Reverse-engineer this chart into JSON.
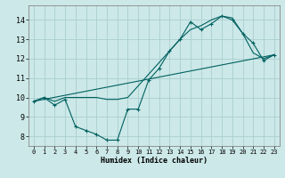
{
  "xlabel": "Humidex (Indice chaleur)",
  "background_color": "#cce8e8",
  "line_color": "#006060",
  "grid_color": "#aacece",
  "xlim": [
    -0.5,
    23.5
  ],
  "ylim": [
    7.5,
    14.75
  ],
  "xticks": [
    0,
    1,
    2,
    3,
    4,
    5,
    6,
    7,
    8,
    9,
    10,
    11,
    12,
    13,
    14,
    15,
    16,
    17,
    18,
    19,
    20,
    21,
    22,
    23
  ],
  "yticks": [
    8,
    9,
    10,
    11,
    12,
    13,
    14
  ],
  "line1_x": [
    0,
    1,
    2,
    3,
    4,
    5,
    6,
    7,
    8,
    9,
    10,
    11,
    12,
    13,
    14,
    15,
    16,
    17,
    18,
    19,
    20,
    21,
    22,
    23
  ],
  "line1_y": [
    9.8,
    10.0,
    9.6,
    9.9,
    8.5,
    8.3,
    8.1,
    7.8,
    7.8,
    9.4,
    9.4,
    10.9,
    11.5,
    12.4,
    13.0,
    13.9,
    13.5,
    13.8,
    14.2,
    14.0,
    13.3,
    12.8,
    11.9,
    12.2
  ],
  "line2_x": [
    0,
    1,
    2,
    3,
    4,
    5,
    6,
    7,
    8,
    9,
    10,
    11,
    12,
    13,
    14,
    15,
    16,
    17,
    18,
    19,
    20,
    21,
    22,
    23
  ],
  "line2_y": [
    9.8,
    10.0,
    9.8,
    10.0,
    10.0,
    10.0,
    10.0,
    9.9,
    9.9,
    10.0,
    10.6,
    11.2,
    11.8,
    12.4,
    13.0,
    13.5,
    13.7,
    14.0,
    14.2,
    14.1,
    13.3,
    12.3,
    12.0,
    12.2
  ],
  "line3_x": [
    0,
    23
  ],
  "line3_y": [
    9.8,
    12.2
  ]
}
